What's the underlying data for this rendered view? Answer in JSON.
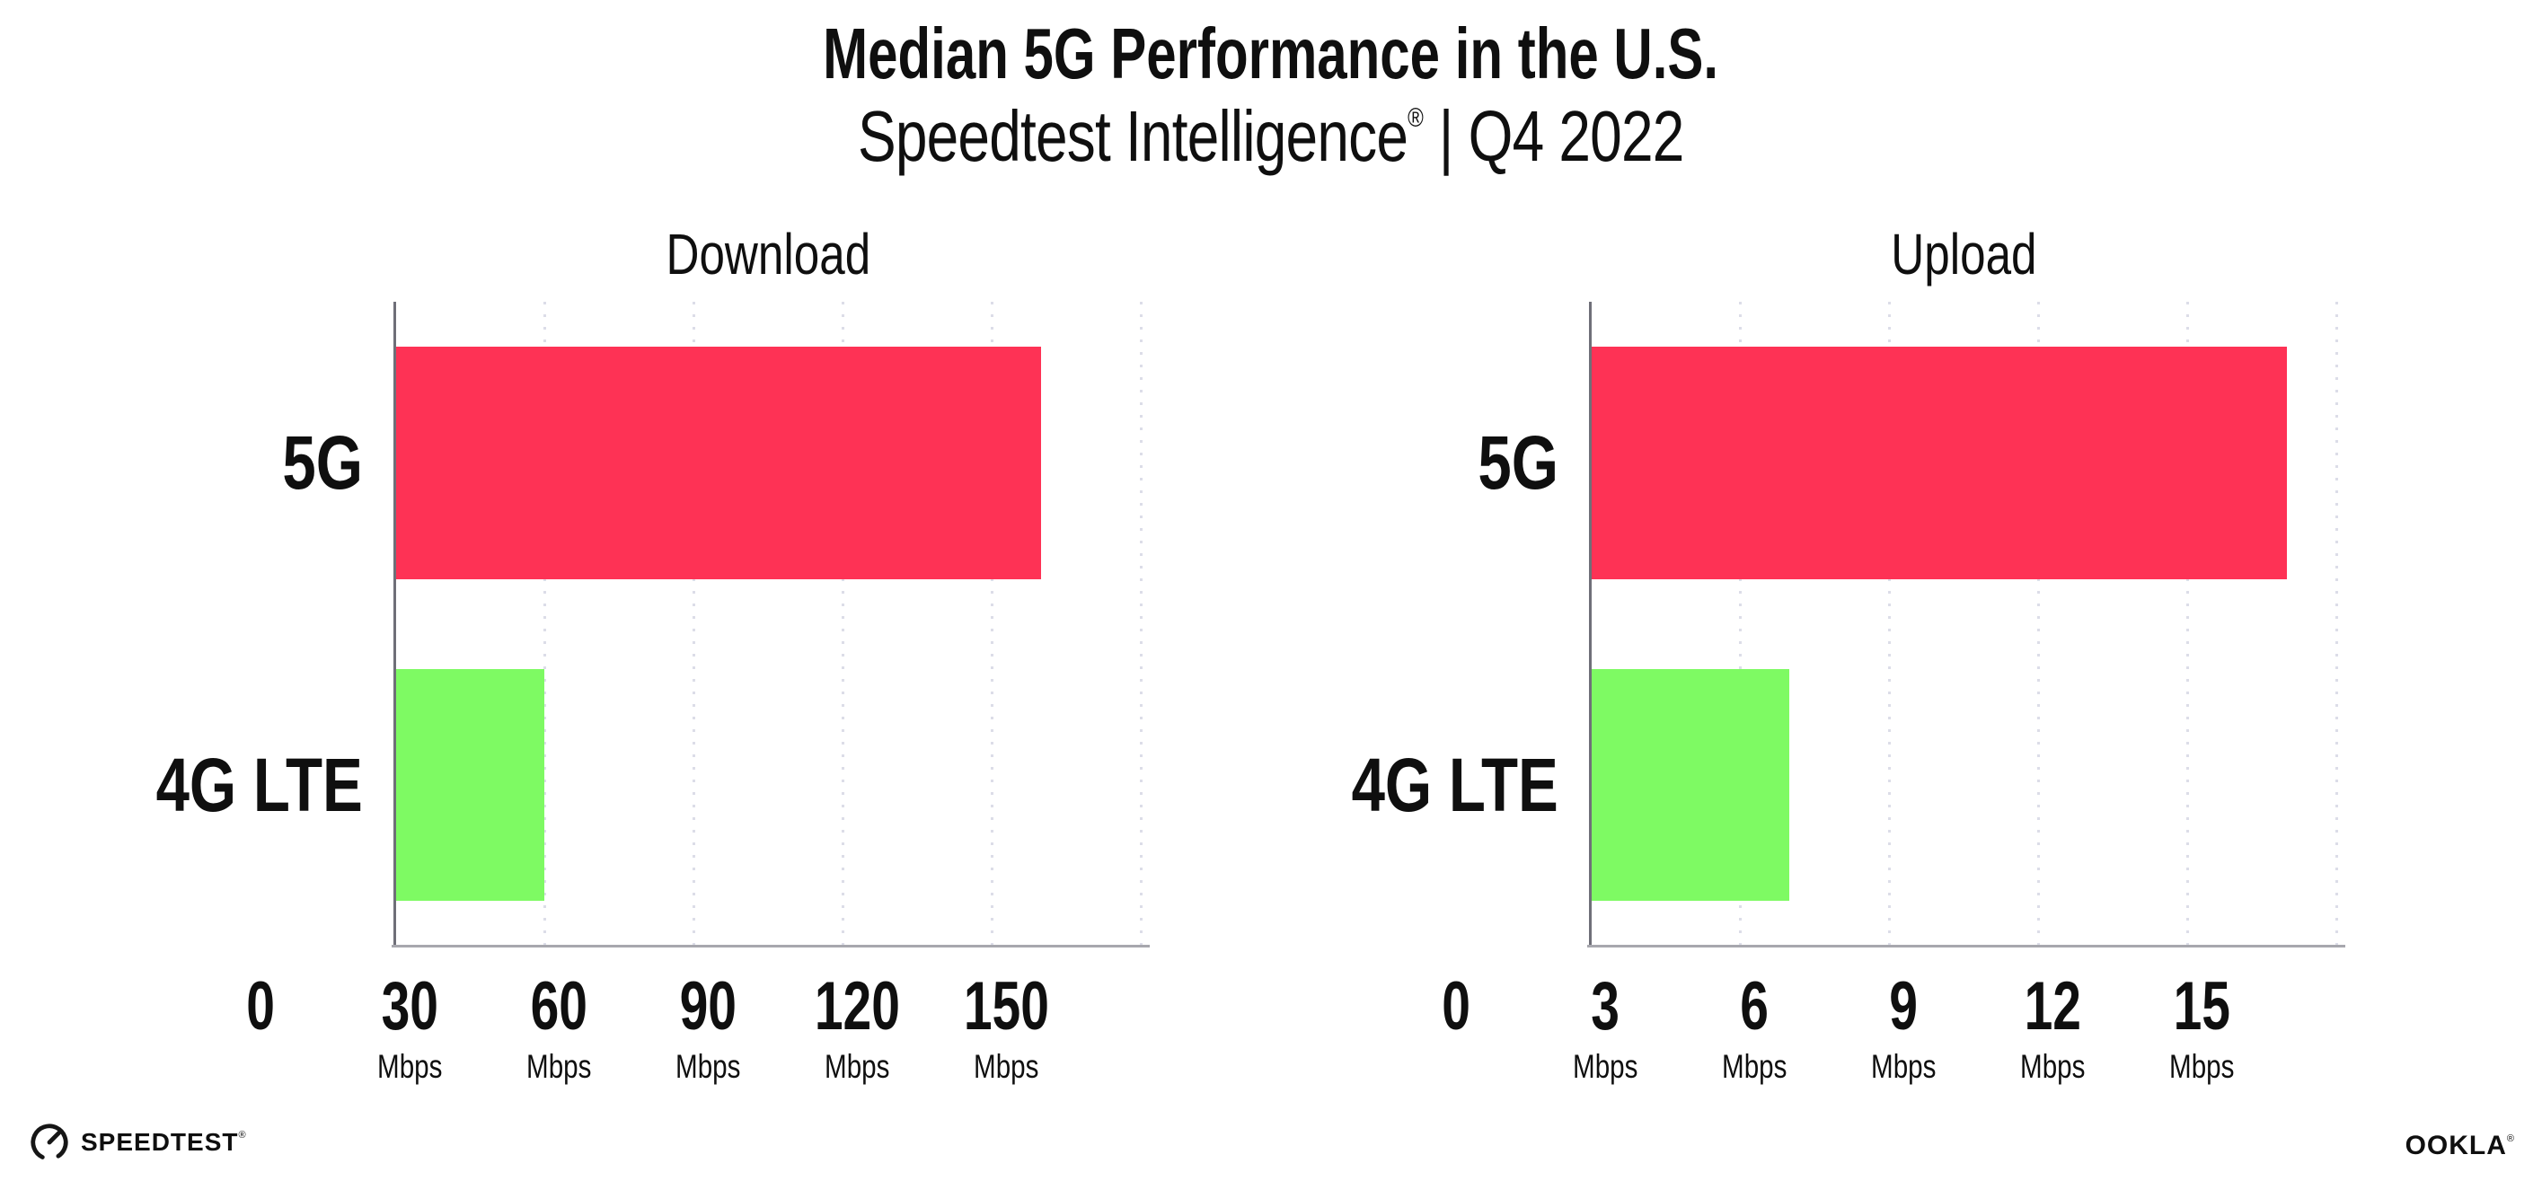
{
  "header": {
    "title": "Median 5G Performance in the U.S.",
    "subtitle_brand": "Speedtest Intelligence",
    "registered_mark": "®",
    "subtitle_rest": " | Q4 2022"
  },
  "chart_data": [
    {
      "type": "bar",
      "orientation": "horizontal",
      "title": "Download",
      "categories": [
        "5G",
        "4G LTE"
      ],
      "values": [
        130,
        30
      ],
      "unit": "Mbps",
      "xlim": [
        0,
        150
      ],
      "xticks": [
        0,
        30,
        60,
        90,
        120,
        150
      ],
      "tick_unit_label": "Mbps",
      "unit_on_zero_tick": false,
      "bar_colors": [
        "#fe3255",
        "#7efa63"
      ],
      "grid": "dotted-vertical",
      "legend": "none"
    },
    {
      "type": "bar",
      "orientation": "horizontal",
      "title": "Upload",
      "categories": [
        "5G",
        "4G LTE"
      ],
      "values": [
        14,
        4
      ],
      "unit": "Mbps",
      "xlim": [
        0,
        15
      ],
      "xticks": [
        0,
        3,
        6,
        9,
        12,
        15
      ],
      "tick_unit_label": "Mbps",
      "unit_on_zero_tick": false,
      "bar_colors": [
        "#fe3255",
        "#7efa63"
      ],
      "grid": "dotted-vertical",
      "legend": "none"
    }
  ],
  "footer": {
    "speedtest_label": "SPEEDTEST",
    "speedtest_mark": "®",
    "ookla_label": "OOKLA",
    "ookla_mark": "®"
  },
  "colors": {
    "bar_5g": "#fe3255",
    "bar_4g_lte": "#7efa63",
    "gridline": "#dcdde8",
    "x_axis": "#a7a7ae",
    "y_axis": "#6f6f78",
    "text": "#0f0f0f",
    "background": "#ffffff"
  }
}
